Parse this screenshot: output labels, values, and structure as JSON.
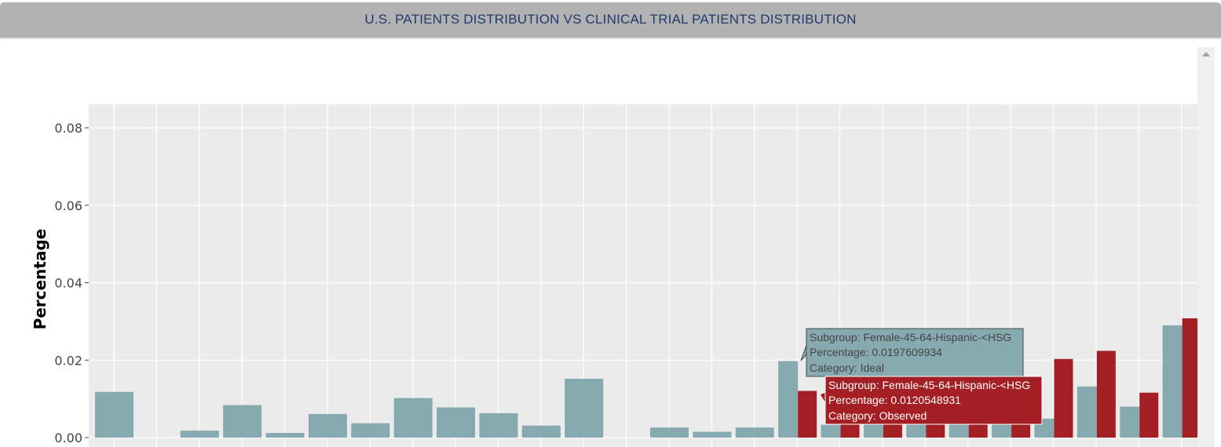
{
  "header": {
    "title": "U.S. PATIENTS DISTRIBUTION VS CLINICAL TRIAL PATIENTS DISTRIBUTION"
  },
  "colors": {
    "ideal": "#87a9b0",
    "observed": "#a41f24",
    "panel": "#ebebeb",
    "header": "#b2b2b2"
  },
  "chart_data": {
    "type": "bar",
    "ylabel": "Percentage",
    "ylim": [
      0,
      0.086
    ],
    "yticks": [
      0.0,
      0.02,
      0.04,
      0.06,
      0.08
    ],
    "ytick_labels": [
      "0.00",
      "0.02",
      "0.04",
      "0.06",
      "0.08"
    ],
    "grid": true,
    "legend": "none",
    "n_groups": 26,
    "series": [
      {
        "name": "Ideal",
        "values": [
          0.0118,
          0,
          0.0018,
          0.0084,
          0.0012,
          0.0061,
          0.0037,
          0.0102,
          0.0078,
          0.0063,
          0.0031,
          0.0152,
          0,
          0.0026,
          0.0015,
          0.0026,
          0.0197609934,
          0.0033,
          0.0035,
          0.0035,
          0.0035,
          0.0035,
          0.0049,
          0.0132,
          0.008,
          0.029
        ]
      },
      {
        "name": "Observed",
        "values": [
          0,
          0,
          0,
          0,
          0,
          0,
          0,
          0,
          0,
          0,
          0,
          0,
          0,
          0,
          0,
          0,
          0.0120548931,
          0.0035,
          0.0035,
          0.0035,
          0.0035,
          0.0035,
          0.0203,
          0.0224,
          0.0116,
          0.0308
        ]
      }
    ],
    "tooltips": [
      {
        "subgroup": "Subgroup: Female-45-64-Hispanic-<HSG",
        "percentage": "Percentage: 0.0197609934",
        "category": "Category: Ideal"
      },
      {
        "subgroup": "Subgroup: Female-45-64-Hispanic-<HSG",
        "percentage": "Percentage: 0.0120548931",
        "category": "Category: Observed"
      }
    ]
  }
}
